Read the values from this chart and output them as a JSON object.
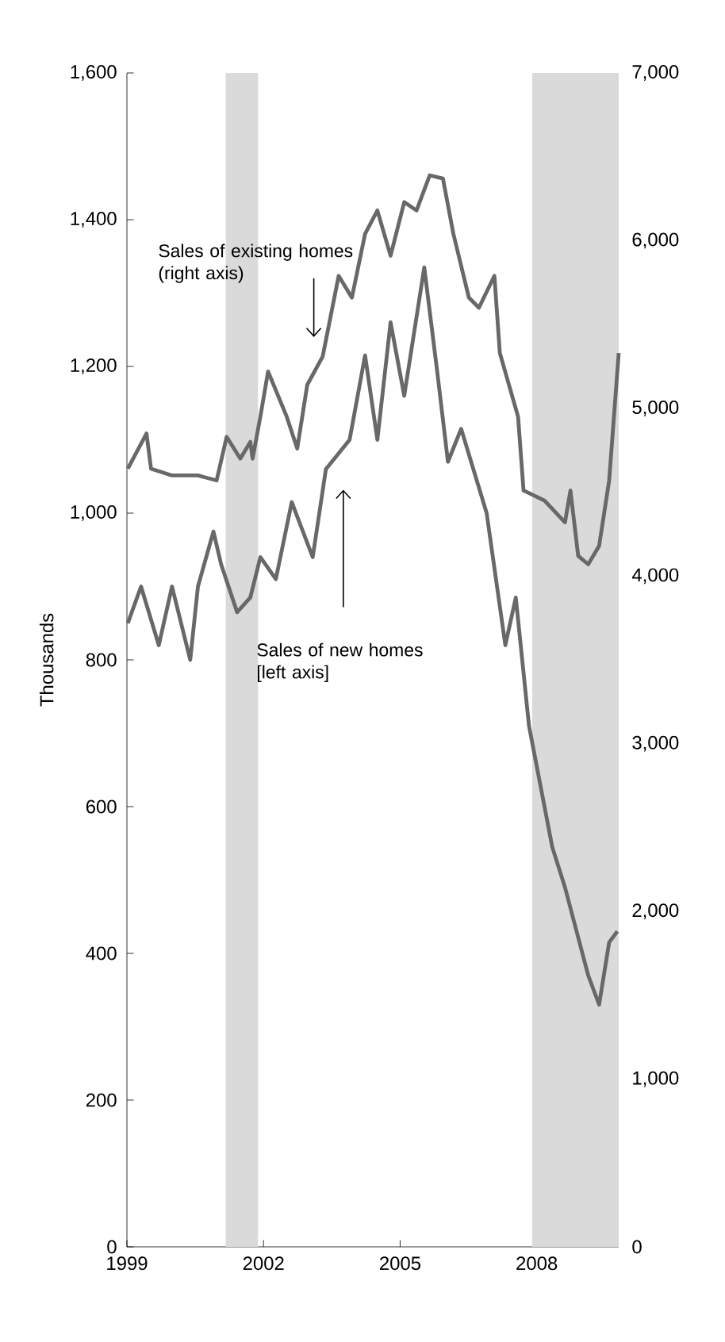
{
  "chart_data": {
    "type": "line",
    "ylabel": "Thousands",
    "xlim": [
      1999,
      2009.8
    ],
    "xticks": [
      {
        "value": 1999,
        "label": "1999"
      },
      {
        "value": 2002,
        "label": "2002"
      },
      {
        "value": 2005,
        "label": "2005"
      },
      {
        "value": 2008,
        "label": "2008"
      }
    ],
    "ylim": [
      0,
      1600
    ],
    "yticks": [
      {
        "value": 0,
        "label": "0"
      },
      {
        "value": 200,
        "label": "200"
      },
      {
        "value": 400,
        "label": "400"
      },
      {
        "value": 600,
        "label": "600"
      },
      {
        "value": 800,
        "label": "800"
      },
      {
        "value": 1000,
        "label": "1,000"
      },
      {
        "value": 1200,
        "label": "1,200"
      },
      {
        "value": 1400,
        "label": "1,400"
      },
      {
        "value": 1600,
        "label": "1,600"
      }
    ],
    "y2lim": [
      0,
      7000
    ],
    "y2ticks": [
      {
        "value": 0,
        "label": "0"
      },
      {
        "value": 1000,
        "label": "1,000"
      },
      {
        "value": 2000,
        "label": "2,000"
      },
      {
        "value": 3000,
        "label": "3,000"
      },
      {
        "value": 4000,
        "label": "4,000"
      },
      {
        "value": 5000,
        "label": "5,000"
      },
      {
        "value": 6000,
        "label": "6,000"
      },
      {
        "value": 7000,
        "label": "7,000"
      }
    ],
    "bands": [
      {
        "axis": "x",
        "from": 2001.17,
        "to": 2001.88,
        "color": "#dadada"
      },
      {
        "axis": "x",
        "from": 2007.9,
        "to": 2009.8,
        "color": "#dadada"
      }
    ],
    "series": [
      {
        "name": "Sales of existing homes (right axis)",
        "color": "#686868",
        "axis": "y2",
        "x": [
          1999.02,
          1999.43,
          1999.53,
          1999.99,
          2000.56,
          2000.97,
          2001.19,
          2001.49,
          2001.71,
          2001.76,
          2001.93,
          2002.1,
          2002.51,
          2002.74,
          2002.96,
          2003.3,
          2003.65,
          2003.94,
          2004.23,
          2004.5,
          2004.79,
          2005.09,
          2005.36,
          2005.65,
          2005.94,
          2006.17,
          2006.51,
          2006.73,
          2007.07,
          2007.19,
          2007.59,
          2007.71,
          2008.17,
          2008.62,
          2008.74,
          2008.91,
          2009.13,
          2009.37,
          2009.59,
          2009.8
        ],
        "values": [
          4640,
          4850,
          4640,
          4600,
          4600,
          4570,
          4830,
          4700,
          4800,
          4700,
          4950,
          5220,
          4950,
          4760,
          5140,
          5310,
          5790,
          5660,
          6040,
          6180,
          5910,
          6230,
          6180,
          6390,
          6370,
          6040,
          5660,
          5600,
          5790,
          5330,
          4950,
          4510,
          4450,
          4320,
          4510,
          4120,
          4070,
          4180,
          4570,
          5330
        ]
      },
      {
        "name": "Sales of new homes [left axis]",
        "color": "#686868",
        "x": [
          1999.02,
          1999.31,
          1999.7,
          1999.99,
          2000.39,
          2000.56,
          2000.9,
          2001.07,
          2001.42,
          2001.71,
          2001.93,
          2002.27,
          2002.62,
          2003.08,
          2003.37,
          2003.89,
          2004.23,
          2004.5,
          2004.79,
          2005.09,
          2005.53,
          2005.82,
          2006.05,
          2006.34,
          2006.9,
          2007.31,
          2007.54,
          2007.83,
          2008.34,
          2008.62,
          2009.13,
          2009.37,
          2009.59,
          2009.77
        ],
        "values": [
          850,
          900,
          820,
          900,
          800,
          900,
          975,
          930,
          865,
          885,
          940,
          910,
          1015,
          940,
          1060,
          1100,
          1215,
          1100,
          1260,
          1160,
          1335,
          1190,
          1070,
          1115,
          1000,
          820,
          885,
          710,
          545,
          490,
          370,
          330,
          415,
          430
        ]
      }
    ]
  }
}
